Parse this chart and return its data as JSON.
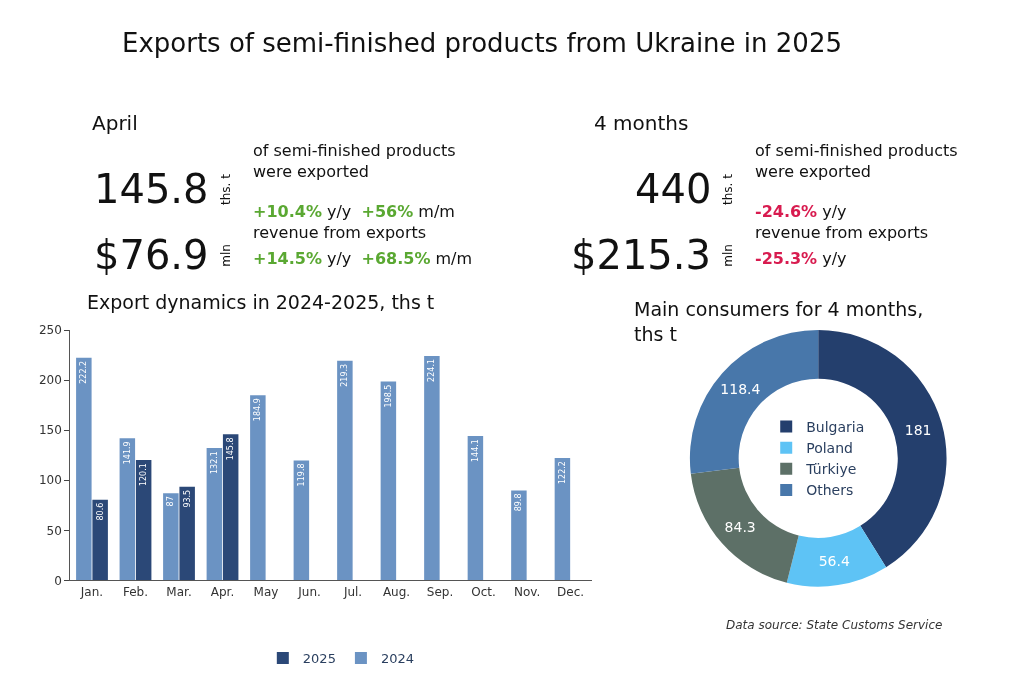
{
  "chart_data": [
    {
      "type": "other",
      "title": "Exports of semi-finished products from Ukraine in 2025",
      "annotations": [
        "April",
        "145.8",
        "ths. t",
        "of semi-finished products\nwere exported",
        "+10.4% y/y  +56% m/m",
        "$76.9",
        "mln",
        "revenue from exports",
        "+14.5% y/y  +68.5% m/m",
        "4 months",
        "440",
        "ths. t",
        "of semi-finished products\nwere exported",
        "-24.6% y/y",
        "$215.3",
        "mln",
        "revenue from exports",
        "-25.3% y/y"
      ]
    },
    {
      "type": "bar",
      "title": "Export dynamics in 2024-2025, ths t",
      "categories": [
        "Jan.",
        "Feb.",
        "Mar.",
        "Apr.",
        "May",
        "Jun.",
        "Jul.",
        "Aug.",
        "Sep.",
        "Oct.",
        "Nov.",
        "Dec."
      ],
      "series": [
        {
          "name": "2024",
          "color": "#6b93c3",
          "values": [
            222.2,
            141.9,
            87,
            132.1,
            184.9,
            119.8,
            219.3,
            198.5,
            224.1,
            144.1,
            89.8,
            122.2
          ]
        },
        {
          "name": "2025",
          "color": "#2b4877",
          "values": [
            80.6,
            120.1,
            93.5,
            145.8,
            null,
            null,
            null,
            null,
            null,
            null,
            null,
            null
          ]
        }
      ],
      "ylim": [
        0,
        250
      ],
      "yticks": [
        0,
        50,
        100,
        150,
        200,
        250
      ],
      "data_labels": true,
      "legend": "bottom"
    },
    {
      "type": "donut",
      "title": "Main consumers for 4 months, ths t",
      "categories": [
        "Bulgaria",
        "Poland",
        "Türkiye",
        "Others"
      ],
      "values": [
        181,
        56.4,
        84.3,
        118.4
      ],
      "colors": [
        "#243f6d",
        "#5ec3f5",
        "#5d7067",
        "#4877aa"
      ],
      "data_labels": true,
      "legend": "center",
      "annotations": [
        "Data source: State Customs Service"
      ]
    }
  ]
}
